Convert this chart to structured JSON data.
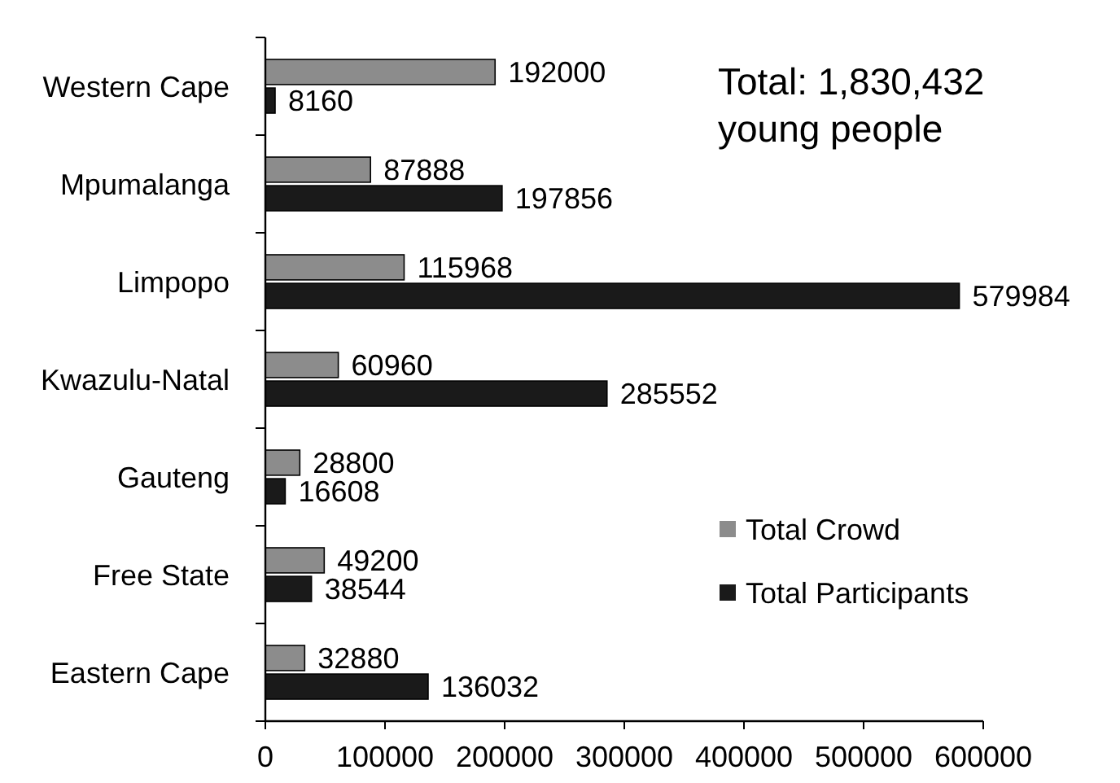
{
  "chart_data": {
    "type": "bar",
    "orientation": "horizontal",
    "categories": [
      "Western Cape",
      "Mpumalanga",
      "Limpopo",
      "Kwazulu-Natal",
      "Gauteng",
      "Free State",
      "Eastern Cape"
    ],
    "series": [
      {
        "name": "Total Crowd",
        "color": "#8c8c8c",
        "values": [
          192000,
          87888,
          115968,
          60960,
          28800,
          49200,
          32880
        ]
      },
      {
        "name": "Total Participants",
        "color": "#1a1a1a",
        "values": [
          8160,
          197856,
          579984,
          285552,
          16608,
          38544,
          136032
        ]
      }
    ],
    "xlim": [
      0,
      600000
    ],
    "xticks": [
      0,
      100000,
      200000,
      300000,
      400000,
      500000,
      600000
    ],
    "data_labels": true,
    "legend": "bottom right",
    "annotations": [
      "Total: 1,830,432 young people"
    ]
  }
}
